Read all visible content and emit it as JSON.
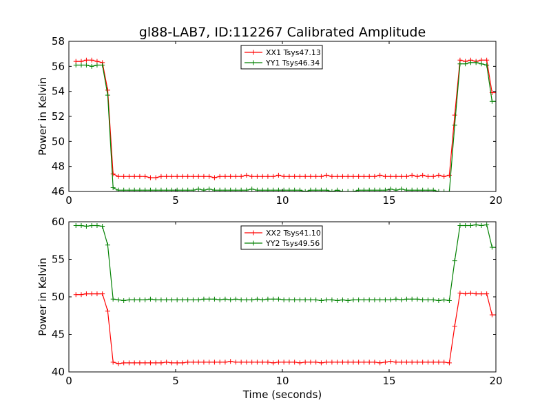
{
  "figure_title": "gl88-LAB7, ID:112267 Calibrated Amplitude",
  "xlabel": "Time (seconds)",
  "chart_data": [
    {
      "type": "line",
      "title": "gl88-LAB7, ID:112267 Calibrated Amplitude",
      "xlabel": "",
      "ylabel": "Power in Kelvin",
      "xlim": [
        0,
        20
      ],
      "ylim": [
        46,
        58
      ],
      "xticks": [
        0,
        5,
        10,
        15,
        20
      ],
      "yticks": [
        46,
        48,
        50,
        52,
        54,
        56,
        58
      ],
      "legend_position": "upper center",
      "series": [
        {
          "name": "XX1 Tsys47.13",
          "color": "#ff0000",
          "x": [
            0.33,
            0.58,
            0.82,
            1.07,
            1.32,
            1.57,
            1.82,
            2.07,
            2.32,
            2.57,
            2.82,
            3.07,
            3.32,
            3.57,
            3.82,
            4.07,
            4.32,
            4.57,
            4.82,
            5.07,
            5.32,
            5.57,
            5.82,
            6.07,
            6.32,
            6.57,
            6.82,
            7.07,
            7.32,
            7.57,
            7.82,
            8.07,
            8.32,
            8.57,
            8.82,
            9.07,
            9.32,
            9.57,
            9.82,
            10.07,
            10.32,
            10.57,
            10.82,
            11.07,
            11.32,
            11.57,
            11.82,
            12.07,
            12.32,
            12.57,
            12.82,
            13.07,
            13.32,
            13.57,
            13.82,
            14.07,
            14.32,
            14.57,
            14.82,
            15.07,
            15.32,
            15.57,
            15.82,
            16.07,
            16.32,
            16.57,
            16.82,
            17.07,
            17.32,
            17.57,
            17.82,
            18.07,
            18.32,
            18.57,
            18.82,
            19.07,
            19.32,
            19.57,
            19.82,
            20.0
          ],
          "y": [
            56.4,
            56.4,
            56.5,
            56.5,
            56.4,
            56.3,
            54.1,
            47.4,
            47.2,
            47.2,
            47.2,
            47.2,
            47.2,
            47.2,
            47.1,
            47.1,
            47.2,
            47.2,
            47.2,
            47.2,
            47.2,
            47.2,
            47.2,
            47.2,
            47.2,
            47.2,
            47.1,
            47.2,
            47.2,
            47.2,
            47.2,
            47.2,
            47.3,
            47.2,
            47.2,
            47.2,
            47.2,
            47.2,
            47.3,
            47.2,
            47.2,
            47.2,
            47.2,
            47.2,
            47.2,
            47.2,
            47.2,
            47.3,
            47.2,
            47.2,
            47.2,
            47.2,
            47.2,
            47.2,
            47.2,
            47.2,
            47.2,
            47.3,
            47.2,
            47.2,
            47.2,
            47.2,
            47.2,
            47.3,
            47.2,
            47.3,
            47.2,
            47.2,
            47.3,
            47.2,
            47.3,
            52.1,
            56.5,
            56.4,
            56.5,
            56.4,
            56.5,
            56.5,
            53.9,
            53.9
          ]
        },
        {
          "name": "YY1 Tsys46.34",
          "color": "#008000",
          "x": [
            0.33,
            0.58,
            0.82,
            1.07,
            1.32,
            1.57,
            1.82,
            2.07,
            2.32,
            2.57,
            2.82,
            3.07,
            3.32,
            3.57,
            3.82,
            4.07,
            4.32,
            4.57,
            4.82,
            5.07,
            5.32,
            5.57,
            5.82,
            6.07,
            6.32,
            6.57,
            6.82,
            7.07,
            7.32,
            7.57,
            7.82,
            8.07,
            8.32,
            8.57,
            8.82,
            9.07,
            9.32,
            9.57,
            9.82,
            10.07,
            10.32,
            10.57,
            10.82,
            11.07,
            11.32,
            11.57,
            11.82,
            12.07,
            12.32,
            12.57,
            12.82,
            13.07,
            13.32,
            13.57,
            13.82,
            14.07,
            14.32,
            14.57,
            14.82,
            15.07,
            15.32,
            15.57,
            15.82,
            16.07,
            16.32,
            16.57,
            16.82,
            17.07,
            17.32,
            17.57,
            17.82,
            18.07,
            18.32,
            18.57,
            18.82,
            19.07,
            19.32,
            19.57,
            19.82,
            20.0
          ],
          "y": [
            56.1,
            56.1,
            56.1,
            56.0,
            56.1,
            56.1,
            53.7,
            46.3,
            46.1,
            46.1,
            46.1,
            46.1,
            46.1,
            46.1,
            46.1,
            46.1,
            46.1,
            46.1,
            46.1,
            46.1,
            46.1,
            46.1,
            46.1,
            46.2,
            46.1,
            46.2,
            46.1,
            46.1,
            46.1,
            46.1,
            46.1,
            46.1,
            46.1,
            46.2,
            46.1,
            46.1,
            46.1,
            46.1,
            46.1,
            46.1,
            46.1,
            46.1,
            46.1,
            46.0,
            46.1,
            46.1,
            46.1,
            46.1,
            46.0,
            46.1,
            46.0,
            46.0,
            46.0,
            46.1,
            46.1,
            46.1,
            46.1,
            46.1,
            46.1,
            46.2,
            46.1,
            46.2,
            46.1,
            46.1,
            46.1,
            46.1,
            46.1,
            46.1,
            46.0,
            46.0,
            46.0,
            51.3,
            56.2,
            56.2,
            56.3,
            56.3,
            56.2,
            56.1,
            53.2,
            53.2
          ]
        }
      ]
    },
    {
      "type": "line",
      "title": "",
      "xlabel": "Time (seconds)",
      "ylabel": "Power in Kelvin",
      "xlim": [
        0,
        20
      ],
      "ylim": [
        40,
        60
      ],
      "xticks": [
        0,
        5,
        10,
        15,
        20
      ],
      "yticks": [
        40,
        45,
        50,
        55,
        60
      ],
      "legend_position": "upper center",
      "series": [
        {
          "name": "XX2 Tsys41.10",
          "color": "#ff0000",
          "x": [
            0.33,
            0.58,
            0.82,
            1.07,
            1.32,
            1.57,
            1.82,
            2.07,
            2.32,
            2.57,
            2.82,
            3.07,
            3.32,
            3.57,
            3.82,
            4.07,
            4.32,
            4.57,
            4.82,
            5.07,
            5.32,
            5.57,
            5.82,
            6.07,
            6.32,
            6.57,
            6.82,
            7.07,
            7.32,
            7.57,
            7.82,
            8.07,
            8.32,
            8.57,
            8.82,
            9.07,
            9.32,
            9.57,
            9.82,
            10.07,
            10.32,
            10.57,
            10.82,
            11.07,
            11.32,
            11.57,
            11.82,
            12.07,
            12.32,
            12.57,
            12.82,
            13.07,
            13.32,
            13.57,
            13.82,
            14.07,
            14.32,
            14.57,
            14.82,
            15.07,
            15.32,
            15.57,
            15.82,
            16.07,
            16.32,
            16.57,
            16.82,
            17.07,
            17.32,
            17.57,
            17.82,
            18.07,
            18.32,
            18.57,
            18.82,
            19.07,
            19.32,
            19.57,
            19.82,
            20.0
          ],
          "y": [
            50.3,
            50.3,
            50.4,
            50.4,
            50.4,
            50.4,
            48.1,
            41.3,
            41.1,
            41.2,
            41.2,
            41.2,
            41.2,
            41.2,
            41.2,
            41.2,
            41.2,
            41.3,
            41.2,
            41.2,
            41.2,
            41.3,
            41.3,
            41.3,
            41.3,
            41.3,
            41.3,
            41.3,
            41.3,
            41.4,
            41.3,
            41.3,
            41.3,
            41.3,
            41.3,
            41.3,
            41.3,
            41.2,
            41.3,
            41.3,
            41.3,
            41.3,
            41.2,
            41.3,
            41.3,
            41.3,
            41.2,
            41.3,
            41.3,
            41.3,
            41.3,
            41.3,
            41.3,
            41.3,
            41.3,
            41.3,
            41.3,
            41.2,
            41.3,
            41.4,
            41.3,
            41.3,
            41.3,
            41.3,
            41.3,
            41.3,
            41.3,
            41.3,
            41.3,
            41.3,
            41.2,
            46.1,
            50.5,
            50.4,
            50.5,
            50.4,
            50.4,
            50.4,
            47.6,
            47.6
          ]
        },
        {
          "name": "YY2 Tsys49.56",
          "color": "#008000",
          "x": [
            0.33,
            0.58,
            0.82,
            1.07,
            1.32,
            1.57,
            1.82,
            2.07,
            2.32,
            2.57,
            2.82,
            3.07,
            3.32,
            3.57,
            3.82,
            4.07,
            4.32,
            4.57,
            4.82,
            5.07,
            5.32,
            5.57,
            5.82,
            6.07,
            6.32,
            6.57,
            6.82,
            7.07,
            7.32,
            7.57,
            7.82,
            8.07,
            8.32,
            8.57,
            8.82,
            9.07,
            9.32,
            9.57,
            9.82,
            10.07,
            10.32,
            10.57,
            10.82,
            11.07,
            11.32,
            11.57,
            11.82,
            12.07,
            12.32,
            12.57,
            12.82,
            13.07,
            13.32,
            13.57,
            13.82,
            14.07,
            14.32,
            14.57,
            14.82,
            15.07,
            15.32,
            15.57,
            15.82,
            16.07,
            16.32,
            16.57,
            16.82,
            17.07,
            17.32,
            17.57,
            17.82,
            18.07,
            18.32,
            18.57,
            18.82,
            19.07,
            19.32,
            19.57,
            19.82,
            20.0
          ],
          "y": [
            59.5,
            59.5,
            59.4,
            59.5,
            59.5,
            59.4,
            56.9,
            49.7,
            49.6,
            49.5,
            49.6,
            49.6,
            49.6,
            49.6,
            49.7,
            49.6,
            49.6,
            49.6,
            49.6,
            49.6,
            49.6,
            49.6,
            49.6,
            49.6,
            49.7,
            49.7,
            49.7,
            49.6,
            49.7,
            49.6,
            49.7,
            49.6,
            49.6,
            49.6,
            49.7,
            49.6,
            49.7,
            49.7,
            49.7,
            49.6,
            49.6,
            49.6,
            49.6,
            49.6,
            49.6,
            49.6,
            49.5,
            49.6,
            49.6,
            49.5,
            49.6,
            49.5,
            49.6,
            49.6,
            49.6,
            49.6,
            49.6,
            49.6,
            49.6,
            49.6,
            49.7,
            49.6,
            49.7,
            49.7,
            49.7,
            49.6,
            49.6,
            49.6,
            49.5,
            49.6,
            49.5,
            54.8,
            59.5,
            59.5,
            59.5,
            59.6,
            59.5,
            59.6,
            56.6,
            56.6
          ]
        }
      ]
    }
  ]
}
